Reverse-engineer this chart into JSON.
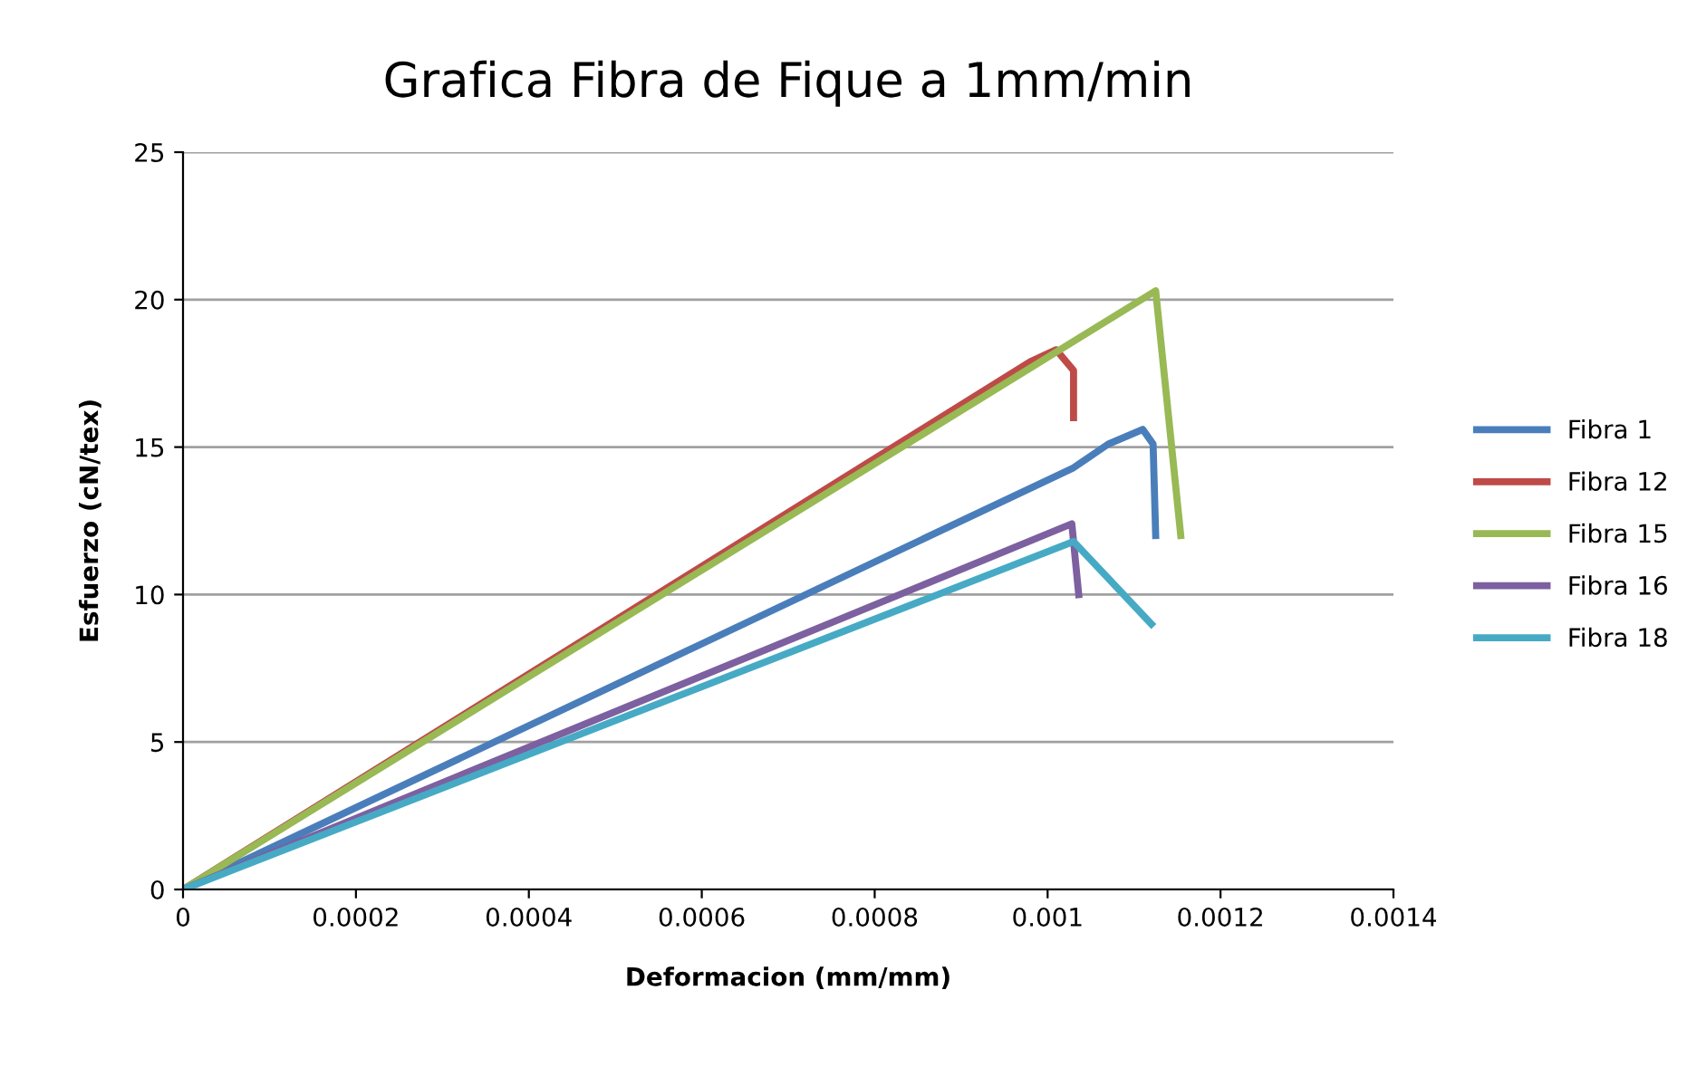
{
  "chart_data": {
    "type": "line",
    "title": "Grafica Fibra de Fique a 1mm/min",
    "xlabel": "Deformacion (mm/mm)",
    "ylabel": "Esfuerzo (cN/tex)",
    "series": [
      {
        "name": "Fibra 1",
        "color": "#4a7ebb",
        "x": [
          0,
          0.00103,
          0.00107,
          0.00111,
          0.001122,
          0.001125
        ],
        "values": [
          0,
          14.3,
          15.1,
          15.6,
          15.1,
          12.0
        ]
      },
      {
        "name": "Fibra 12",
        "color": "#be4b48",
        "x": [
          0,
          0.00098,
          0.00101,
          0.00103,
          0.00103
        ],
        "values": [
          0,
          17.9,
          18.3,
          17.6,
          16.0
        ]
      },
      {
        "name": "Fibra 15",
        "color": "#98b954",
        "x": [
          0,
          0.001125,
          0.001154
        ],
        "values": [
          0,
          20.3,
          12.0
        ]
      },
      {
        "name": "Fibra 16",
        "color": "#7d60a0",
        "x": [
          0,
          0.001028,
          0.001036
        ],
        "values": [
          0,
          12.4,
          10.0
        ]
      },
      {
        "name": "Fibra 18",
        "color": "#46aac5",
        "x": [
          0,
          0.00103,
          0.00112
        ],
        "values": [
          0,
          11.8,
          9.0
        ]
      }
    ],
    "xlim": [
      0,
      0.0014
    ],
    "xticks": [
      {
        "value": 0,
        "label": "0"
      },
      0.0002,
      0.0004,
      0.0006,
      0.0008,
      0.001,
      0.0012,
      0.0014
    ],
    "ylim": [
      0,
      25
    ],
    "yticks": [
      0,
      5,
      10,
      15,
      20,
      25
    ],
    "grid": "y",
    "legend": "right",
    "marker": "none",
    "line_style": "solid"
  }
}
